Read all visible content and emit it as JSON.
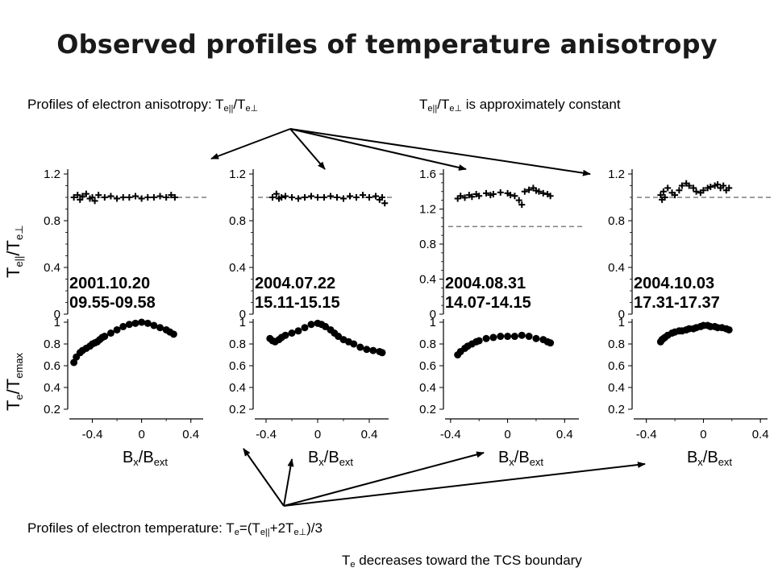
{
  "title": "Observed profiles of temperature anisotropy",
  "captions": {
    "anisotropy_lead": "Profiles of electron anisotropy: T",
    "anisotropy_sub1": "e||",
    "anisotropy_mid": "/T",
    "anisotropy_sub2": "e⊥",
    "constant_lead": "T",
    "constant_sub1": "e||",
    "constant_mid": "/T",
    "constant_sub2": "e⊥",
    "constant_tail": " is approximately constant",
    "temperature_lead": "Profiles of electron temperature: T",
    "temperature_sub1": "e",
    "temperature_mid": "=(T",
    "temperature_sub2": "e||",
    "temperature_mid2": "+2T",
    "temperature_sub3": "e⊥",
    "temperature_tail": ")/3",
    "decrease_lead": "T",
    "decrease_sub": "e",
    "decrease_tail": " decreases toward the TCS boundary"
  },
  "axis_labels": {
    "top_y": "T",
    "top_y_sub": "e||",
    "top_y_mid": "/T",
    "top_y_sub2": "e⊥",
    "bottom_y": "T",
    "bottom_y_sub": "e",
    "bottom_y_mid": "/T",
    "bottom_y_sub2": "emax",
    "x": "B",
    "x_sub1": "x",
    "x_mid": "/B",
    "x_sub2": "ext"
  },
  "colors": {
    "marker": "#000000",
    "reference_line": "#7f7f7f"
  },
  "chart_data": [
    {
      "type": "scatter",
      "panel": "anisotropy",
      "marker": "plus",
      "date": "2001.10.20",
      "time": "09.55-09.58",
      "ylim": [
        0,
        1.2
      ],
      "yticks": [
        "0",
        "0.4",
        "0.8",
        "1.2"
      ],
      "reference_y": 1.0,
      "x": [
        -0.55,
        -0.52,
        -0.5,
        -0.48,
        -0.45,
        -0.42,
        -0.4,
        -0.38,
        -0.35,
        -0.3,
        -0.25,
        -0.2,
        -0.15,
        -0.1,
        -0.05,
        0.0,
        0.05,
        0.1,
        0.15,
        0.2,
        0.24,
        0.27
      ],
      "y": [
        1.0,
        1.02,
        0.98,
        1.01,
        1.03,
        0.99,
        1.0,
        0.97,
        1.02,
        1.0,
        1.01,
        0.99,
        1.0,
        1.0,
        1.01,
        0.99,
        1.0,
        1.0,
        1.01,
        1.0,
        1.02,
        1.0
      ]
    },
    {
      "type": "scatter",
      "panel": "anisotropy",
      "marker": "plus",
      "date": "2004.07.22",
      "time": "15.11-15.15",
      "ylim": [
        0,
        1.2
      ],
      "yticks": [
        "0",
        "0.4",
        "0.8",
        "1.2"
      ],
      "reference_y": 1.0,
      "x": [
        -0.35,
        -0.32,
        -0.3,
        -0.28,
        -0.25,
        -0.2,
        -0.15,
        -0.1,
        -0.05,
        0.0,
        0.05,
        0.1,
        0.15,
        0.2,
        0.25,
        0.3,
        0.35,
        0.4,
        0.45,
        0.48,
        0.5,
        0.52
      ],
      "y": [
        1.0,
        1.03,
        0.99,
        1.0,
        1.01,
        1.0,
        0.99,
        1.0,
        1.01,
        1.0,
        1.0,
        1.01,
        1.0,
        0.99,
        1.01,
        1.0,
        1.02,
        1.0,
        1.01,
        0.98,
        1.0,
        0.95
      ]
    },
    {
      "type": "scatter",
      "panel": "anisotropy",
      "marker": "plus",
      "date": "2004.08.31",
      "time": "14.07-14.15",
      "ylim": [
        0,
        1.6
      ],
      "yticks": [
        "0",
        "0.4",
        "0.8",
        "1.2",
        "1.6"
      ],
      "reference_y": 1.0,
      "x": [
        -0.35,
        -0.33,
        -0.3,
        -0.27,
        -0.25,
        -0.22,
        -0.2,
        -0.15,
        -0.12,
        -0.1,
        -0.05,
        0.0,
        0.02,
        0.05,
        0.08,
        0.1,
        0.12,
        0.15,
        0.18,
        0.2,
        0.22,
        0.25,
        0.28,
        0.3
      ],
      "y": [
        1.32,
        1.35,
        1.33,
        1.36,
        1.34,
        1.37,
        1.35,
        1.38,
        1.36,
        1.37,
        1.39,
        1.38,
        1.36,
        1.35,
        1.3,
        1.25,
        1.4,
        1.42,
        1.44,
        1.41,
        1.4,
        1.38,
        1.37,
        1.35
      ]
    },
    {
      "type": "scatter",
      "panel": "anisotropy",
      "marker": "plus",
      "date": "2004.10.03",
      "time": "17.31-17.37",
      "ylim": [
        0,
        1.2
      ],
      "yticks": [
        "0",
        "0.4",
        "0.8",
        "1.2"
      ],
      "reference_y": 1.0,
      "x": [
        -0.3,
        -0.29,
        -0.28,
        -0.27,
        -0.25,
        -0.22,
        -0.2,
        -0.17,
        -0.15,
        -0.12,
        -0.1,
        -0.07,
        -0.05,
        -0.02,
        0.0,
        0.03,
        0.05,
        0.08,
        0.1,
        0.12,
        0.14,
        0.16,
        0.18
      ],
      "y": [
        1.02,
        0.98,
        1.05,
        1.0,
        1.08,
        1.04,
        1.02,
        1.06,
        1.1,
        1.12,
        1.1,
        1.08,
        1.05,
        1.04,
        1.06,
        1.08,
        1.09,
        1.1,
        1.11,
        1.08,
        1.1,
        1.06,
        1.08
      ]
    },
    {
      "type": "scatter",
      "panel": "temperature",
      "marker": "circle",
      "ylim": [
        0.2,
        1.0
      ],
      "yticks": [
        "0.2",
        "0.4",
        "0.6",
        "0.8",
        "1"
      ],
      "xlim": [
        -0.6,
        0.5
      ],
      "xticks": [
        "-0.4",
        "0",
        "0.4"
      ],
      "x": [
        -0.55,
        -0.53,
        -0.5,
        -0.48,
        -0.45,
        -0.42,
        -0.4,
        -0.38,
        -0.36,
        -0.34,
        -0.32,
        -0.3,
        -0.25,
        -0.2,
        -0.15,
        -0.1,
        -0.05,
        0.0,
        0.05,
        0.1,
        0.15,
        0.2,
        0.23,
        0.26
      ],
      "y": [
        0.63,
        0.68,
        0.72,
        0.74,
        0.76,
        0.78,
        0.8,
        0.81,
        0.82,
        0.84,
        0.86,
        0.87,
        0.9,
        0.93,
        0.96,
        0.98,
        0.99,
        1.0,
        0.99,
        0.97,
        0.95,
        0.93,
        0.91,
        0.89
      ]
    },
    {
      "type": "scatter",
      "panel": "temperature",
      "marker": "circle",
      "ylim": [
        0.2,
        1.0
      ],
      "yticks": [
        "0.2",
        "0.4",
        "0.6",
        "0.8",
        "1"
      ],
      "xlim": [
        -0.5,
        0.55
      ],
      "xticks": [
        "-0.4",
        "0",
        "0.4"
      ],
      "x": [
        -0.37,
        -0.35,
        -0.33,
        -0.3,
        -0.28,
        -0.25,
        -0.2,
        -0.15,
        -0.1,
        -0.05,
        0.0,
        0.03,
        0.06,
        0.1,
        0.13,
        0.16,
        0.2,
        0.24,
        0.28,
        0.33,
        0.38,
        0.43,
        0.48,
        0.5
      ],
      "y": [
        0.85,
        0.83,
        0.82,
        0.84,
        0.86,
        0.88,
        0.9,
        0.92,
        0.95,
        0.98,
        0.99,
        0.98,
        0.96,
        0.93,
        0.9,
        0.87,
        0.84,
        0.82,
        0.8,
        0.77,
        0.75,
        0.74,
        0.73,
        0.72
      ]
    },
    {
      "type": "scatter",
      "panel": "temperature",
      "marker": "circle",
      "ylim": [
        0.2,
        1.0
      ],
      "yticks": [
        "0.2",
        "0.4",
        "0.6",
        "0.8",
        "1"
      ],
      "xlim": [
        -0.45,
        0.5
      ],
      "xticks": [
        "-0.4",
        "0",
        "0.4"
      ],
      "x": [
        -0.35,
        -0.33,
        -0.3,
        -0.28,
        -0.25,
        -0.22,
        -0.2,
        -0.15,
        -0.1,
        -0.05,
        0.0,
        0.05,
        0.1,
        0.15,
        0.2,
        0.25,
        0.28,
        0.3
      ],
      "y": [
        0.7,
        0.73,
        0.76,
        0.78,
        0.8,
        0.82,
        0.83,
        0.85,
        0.86,
        0.87,
        0.87,
        0.87,
        0.88,
        0.87,
        0.85,
        0.84,
        0.82,
        0.81
      ]
    },
    {
      "type": "scatter",
      "panel": "temperature",
      "marker": "circle",
      "ylim": [
        0.2,
        1.0
      ],
      "yticks": [
        "0.2",
        "0.4",
        "0.6",
        "0.8",
        "1"
      ],
      "xlim": [
        -0.5,
        0.45
      ],
      "xticks": [
        "-0.4",
        "0",
        "0.4"
      ],
      "x": [
        -0.3,
        -0.29,
        -0.28,
        -0.27,
        -0.25,
        -0.22,
        -0.2,
        -0.17,
        -0.15,
        -0.12,
        -0.1,
        -0.07,
        -0.05,
        -0.02,
        0.0,
        0.03,
        0.05,
        0.08,
        0.1,
        0.13,
        0.16,
        0.18
      ],
      "y": [
        0.82,
        0.84,
        0.85,
        0.86,
        0.88,
        0.9,
        0.91,
        0.92,
        0.92,
        0.93,
        0.94,
        0.94,
        0.95,
        0.96,
        0.97,
        0.97,
        0.96,
        0.96,
        0.95,
        0.95,
        0.94,
        0.93
      ]
    }
  ]
}
